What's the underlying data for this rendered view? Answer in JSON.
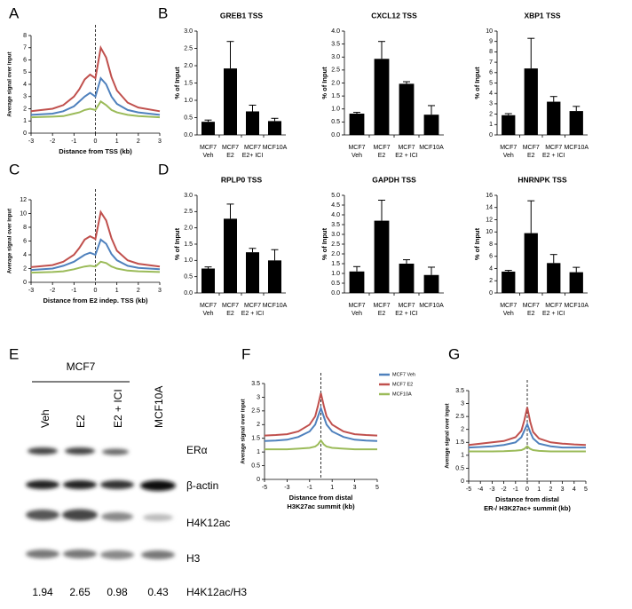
{
  "panel_labels": [
    "A",
    "B",
    "C",
    "D",
    "E",
    "F",
    "G"
  ],
  "chart_data": [
    {
      "type": "line",
      "xlabel": "Distance from TSS (kb)",
      "ylabel": "Average signal over input",
      "x": [
        -3,
        -2,
        -1.5,
        -1,
        -0.75,
        -0.5,
        -0.25,
        0,
        0.25,
        0.5,
        0.75,
        1,
        1.5,
        2,
        3
      ],
      "xlim": [
        -3,
        3
      ],
      "xticks": [
        -3,
        -2,
        -1,
        0,
        1,
        2,
        3
      ],
      "ylim": [
        0,
        8
      ],
      "yticks": [
        0,
        1,
        2,
        3,
        4,
        5,
        6,
        7,
        8
      ],
      "series": [
        {
          "color": "#c0504d",
          "values": [
            1.8,
            2.0,
            2.3,
            3.0,
            3.6,
            4.4,
            4.8,
            4.5,
            7.0,
            6.2,
            4.6,
            3.5,
            2.5,
            2.1,
            1.8
          ]
        },
        {
          "color": "#4f81bd",
          "values": [
            1.5,
            1.6,
            1.8,
            2.2,
            2.6,
            3.0,
            3.3,
            3.0,
            4.5,
            4.0,
            3.0,
            2.4,
            1.9,
            1.7,
            1.5
          ]
        },
        {
          "color": "#9bbb59",
          "values": [
            1.3,
            1.35,
            1.4,
            1.6,
            1.7,
            1.9,
            2.0,
            1.9,
            2.6,
            2.3,
            1.9,
            1.7,
            1.5,
            1.4,
            1.3
          ]
        }
      ]
    },
    {
      "type": "bar",
      "title": "GREB1 TSS",
      "ylabel": "% of Input",
      "color": "#000000",
      "categories": [
        [
          "MCF7",
          "Veh"
        ],
        [
          "MCF7",
          "E2"
        ],
        [
          "MCF7",
          "E2+ ICI"
        ],
        [
          "MCF10A"
        ]
      ],
      "values": [
        0.38,
        1.92,
        0.68,
        0.4
      ],
      "errors": [
        0.05,
        0.78,
        0.18,
        0.08
      ],
      "ylim": [
        0,
        3
      ],
      "yticks": [
        {
          "value": 0,
          "label": "0.0"
        },
        0.5,
        {
          "value": 1,
          "label": "1.0"
        },
        1.5,
        {
          "value": 2,
          "label": "2.0"
        },
        2.5,
        {
          "value": 3,
          "label": "3.0"
        }
      ]
    },
    {
      "type": "bar",
      "title": "CXCL12 TSS",
      "ylabel": "% of Input",
      "color": "#000000",
      "categories": [
        [
          "MCF7",
          "Veh"
        ],
        [
          "MCF7",
          "E2"
        ],
        [
          "MCF7",
          "E2 + ICI"
        ],
        [
          "MCF10A"
        ]
      ],
      "values": [
        0.82,
        2.93,
        1.97,
        0.78
      ],
      "errors": [
        0.05,
        0.67,
        0.08,
        0.35
      ],
      "ylim": [
        0,
        4
      ],
      "yticks": [
        {
          "value": 0,
          "label": "0.0"
        },
        0.5,
        {
          "value": 1,
          "label": "1.0"
        },
        1.5,
        {
          "value": 2,
          "label": "2.0"
        },
        2.5,
        {
          "value": 3,
          "label": "3.0"
        },
        3.5,
        {
          "value": 4,
          "label": "4.0"
        }
      ]
    },
    {
      "type": "bar",
      "title": "XBP1 TSS",
      "ylabel": "% of Input",
      "color": "#000000",
      "categories": [
        [
          "MCF7",
          "Veh"
        ],
        [
          "MCF7",
          "E2"
        ],
        [
          "MCF7",
          "E2 + ICI"
        ],
        [
          "MCF10A"
        ]
      ],
      "values": [
        1.9,
        6.4,
        3.2,
        2.3
      ],
      "errors": [
        0.15,
        2.9,
        0.5,
        0.45
      ],
      "ylim": [
        0,
        10
      ],
      "yticks": [
        0,
        1,
        2,
        3,
        4,
        5,
        6,
        7,
        8,
        9,
        10
      ]
    },
    {
      "type": "line",
      "xlabel": "Distance from E2 indep. TSS (kb)",
      "ylabel": "Average signal over input",
      "x": [
        -3,
        -2,
        -1.5,
        -1,
        -0.75,
        -0.5,
        -0.25,
        0,
        0.25,
        0.5,
        0.75,
        1,
        1.5,
        2,
        3
      ],
      "xlim": [
        -3,
        3
      ],
      "xticks": [
        -3,
        -2,
        -1,
        0,
        1,
        2,
        3
      ],
      "ylim": [
        0,
        12
      ],
      "yticks": [
        0,
        2,
        4,
        6,
        8,
        10,
        12
      ],
      "series": [
        {
          "color": "#c0504d",
          "values": [
            2.2,
            2.5,
            3.0,
            4.0,
            5.0,
            6.2,
            6.7,
            6.3,
            10.2,
            9.0,
            6.4,
            4.6,
            3.2,
            2.7,
            2.3
          ]
        },
        {
          "color": "#4f81bd",
          "values": [
            1.8,
            2.0,
            2.4,
            3.0,
            3.5,
            4.0,
            4.3,
            4.0,
            6.2,
            5.6,
            4.1,
            3.2,
            2.4,
            2.1,
            1.9
          ]
        },
        {
          "color": "#9bbb59",
          "values": [
            1.4,
            1.5,
            1.6,
            1.9,
            2.1,
            2.3,
            2.4,
            2.3,
            3.0,
            2.8,
            2.3,
            2.0,
            1.7,
            1.6,
            1.5
          ]
        }
      ]
    },
    {
      "type": "bar",
      "title": "RPLP0 TSS",
      "ylabel": "% of Input",
      "color": "#000000",
      "categories": [
        [
          "MCF7",
          "Veh"
        ],
        [
          "MCF7",
          "E2"
        ],
        [
          "MCF7",
          "E2 + ICI"
        ],
        [
          "MCF10A"
        ]
      ],
      "values": [
        0.75,
        2.28,
        1.25,
        1.0
      ],
      "errors": [
        0.05,
        0.45,
        0.12,
        0.33
      ],
      "ylim": [
        0,
        3
      ],
      "yticks": [
        {
          "value": 0,
          "label": "0.0"
        },
        0.5,
        {
          "value": 1,
          "label": "1.0"
        },
        1.5,
        {
          "value": 2,
          "label": "2.0"
        },
        2.5,
        {
          "value": 3,
          "label": "3.0"
        }
      ]
    },
    {
      "type": "bar",
      "title": "GAPDH TSS",
      "ylabel": "% of Input",
      "color": "#000000",
      "categories": [
        [
          "MCF7",
          "Veh"
        ],
        [
          "MCF7",
          "E2"
        ],
        [
          "MCF7",
          "E2 + ICI"
        ],
        [
          "MCF10A"
        ]
      ],
      "values": [
        1.1,
        3.7,
        1.5,
        0.92
      ],
      "errors": [
        0.25,
        1.05,
        0.2,
        0.4
      ],
      "ylim": [
        0,
        5
      ],
      "yticks": [
        {
          "value": 0,
          "label": "0.0"
        },
        0.5,
        {
          "value": 1,
          "label": "1.0"
        },
        1.5,
        {
          "value": 2,
          "label": "2.0"
        },
        2.5,
        {
          "value": 3,
          "label": "3.0"
        },
        3.5,
        {
          "value": 4,
          "label": "4.0"
        },
        4.5,
        {
          "value": 5,
          "label": "5.0"
        }
      ]
    },
    {
      "type": "bar",
      "title": "HNRNPK TSS",
      "ylabel": "% of Input",
      "color": "#000000",
      "categories": [
        [
          "MCF7",
          "Veh"
        ],
        [
          "MCF7",
          "E2"
        ],
        [
          "MCF7",
          "E2 + ICI"
        ],
        [
          "MCF10A"
        ]
      ],
      "values": [
        3.5,
        9.8,
        4.9,
        3.4
      ],
      "errors": [
        0.2,
        5.3,
        1.4,
        0.8
      ],
      "ylim": [
        0,
        16
      ],
      "yticks": [
        0,
        2,
        4,
        6,
        8,
        10,
        12,
        14,
        16
      ]
    },
    {
      "type": "line",
      "xlabel": [
        "Distance from distal",
        "H3K27ac summit (kb)"
      ],
      "ylabel": "Average signal over input",
      "x": [
        -5,
        -4,
        -3,
        -2,
        -1,
        -0.5,
        -0.25,
        0,
        0.25,
        0.5,
        1,
        2,
        3,
        4,
        5
      ],
      "xlim": [
        -5,
        5
      ],
      "xticks": [
        -5,
        -3,
        -1,
        1,
        3,
        5
      ],
      "ylim": [
        0,
        3.5
      ],
      "yticks": [
        0,
        0.5,
        1,
        1.5,
        2,
        2.5,
        3,
        3.5
      ],
      "series": [
        {
          "name": "MCF7 Veh",
          "color": "#4f81bd",
          "values": [
            1.4,
            1.42,
            1.45,
            1.55,
            1.75,
            2.0,
            2.3,
            2.6,
            2.3,
            2.0,
            1.75,
            1.55,
            1.45,
            1.42,
            1.4
          ]
        },
        {
          "name": "MCF7 E2",
          "color": "#c0504d",
          "values": [
            1.6,
            1.62,
            1.65,
            1.75,
            2.0,
            2.3,
            2.7,
            3.15,
            2.7,
            2.3,
            2.0,
            1.75,
            1.65,
            1.62,
            1.6
          ]
        },
        {
          "name": "MCF10A",
          "color": "#9bbb59",
          "values": [
            1.1,
            1.1,
            1.1,
            1.12,
            1.15,
            1.2,
            1.28,
            1.42,
            1.28,
            1.2,
            1.15,
            1.12,
            1.1,
            1.1,
            1.1
          ]
        }
      ]
    },
    {
      "type": "line",
      "xlabel": [
        "Distance from distal",
        "ER-/ H3K27ac+ summit (kb)"
      ],
      "ylabel": "Average signal over input",
      "x": [
        -5,
        -4,
        -3,
        -2,
        -1,
        -0.5,
        -0.25,
        0,
        0.25,
        0.5,
        1,
        2,
        3,
        4,
        5
      ],
      "xlim": [
        -5,
        5
      ],
      "xticks": [
        -5,
        -4,
        -3,
        -2,
        -1,
        0,
        1,
        2,
        3,
        4,
        5
      ],
      "ylim": [
        0,
        3.5
      ],
      "yticks": [
        0,
        0.5,
        1,
        1.5,
        2,
        2.5,
        3,
        3.5
      ],
      "series": [
        {
          "color": "#c0504d",
          "values": [
            1.4,
            1.45,
            1.5,
            1.55,
            1.7,
            1.95,
            2.35,
            2.85,
            2.3,
            1.9,
            1.65,
            1.5,
            1.45,
            1.42,
            1.4
          ]
        },
        {
          "color": "#4f81bd",
          "values": [
            1.3,
            1.32,
            1.35,
            1.4,
            1.5,
            1.7,
            1.95,
            2.2,
            1.9,
            1.65,
            1.45,
            1.35,
            1.3,
            1.3,
            1.3
          ]
        },
        {
          "color": "#9bbb59",
          "values": [
            1.15,
            1.15,
            1.15,
            1.16,
            1.18,
            1.2,
            1.25,
            1.35,
            1.25,
            1.2,
            1.17,
            1.15,
            1.15,
            1.15,
            1.15
          ]
        }
      ]
    }
  ],
  "blot": {
    "group": "MCF7",
    "lanes": [
      "Veh",
      "E2",
      "E2 + ICI",
      "MCF10A"
    ],
    "rows": [
      "ERα",
      "β-actin",
      "H4K12ac",
      "H3"
    ],
    "ratio_label": "H4K12ac/H3",
    "ratios": [
      1.94,
      2.65,
      0.98,
      0.43
    ]
  }
}
